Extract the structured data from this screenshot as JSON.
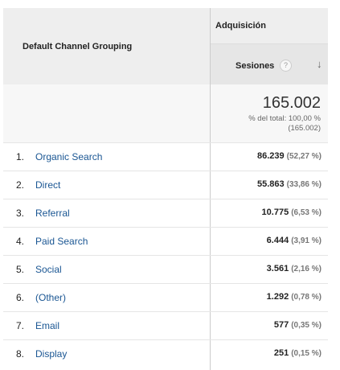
{
  "header": {
    "dimension_label": "Default Channel Grouping",
    "group_label": "Adquisición",
    "metric_label": "Sesiones",
    "help_glyph": "?",
    "sort_glyph": "↓"
  },
  "total": {
    "value": "165.002",
    "line1": "% del total: 100,00 %",
    "line2": "(165.002)"
  },
  "rows": [
    {
      "index": "1.",
      "channel": "Organic Search",
      "sessions": "86.239",
      "percent": "(52,27 %)"
    },
    {
      "index": "2.",
      "channel": "Direct",
      "sessions": "55.863",
      "percent": "(33,86 %)"
    },
    {
      "index": "3.",
      "channel": "Referral",
      "sessions": "10.775",
      "percent": "(6,53 %)"
    },
    {
      "index": "4.",
      "channel": "Paid Search",
      "sessions": "6.444",
      "percent": "(3,91 %)"
    },
    {
      "index": "5.",
      "channel": "Social",
      "sessions": "3.561",
      "percent": "(2,16 %)"
    },
    {
      "index": "6.",
      "channel": "(Other)",
      "sessions": "1.292",
      "percent": "(0,78 %)"
    },
    {
      "index": "7.",
      "channel": "Email",
      "sessions": "577",
      "percent": "(0,35 %)"
    },
    {
      "index": "8.",
      "channel": "Display",
      "sessions": "251",
      "percent": "(0,15 %)"
    }
  ],
  "colors": {
    "link": "#1a5693",
    "header_bg": "#eeeeee",
    "total_bg": "#f7f7f7"
  }
}
